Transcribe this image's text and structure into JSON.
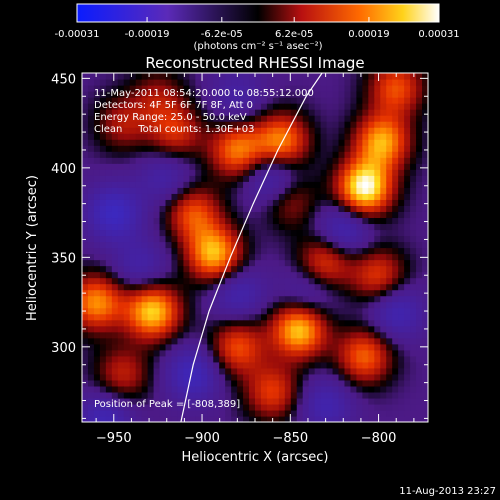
{
  "colorbar": {
    "tick_labels": [
      "-0.00031",
      "-0.00019",
      "-6.2e-05",
      "6.2e-05",
      "0.00019",
      "0.00031"
    ],
    "tick_values": [
      -0.00031,
      -0.00019,
      -6.2e-05,
      6.2e-05,
      0.00019,
      0.00031
    ],
    "range": [
      -0.00031,
      0.00031
    ],
    "units_label": "(photons cm⁻² s⁻¹ asec⁻²)"
  },
  "chart_data": {
    "type": "heatmap",
    "title": "Reconstructed RHESSI Image",
    "xlabel": "Heliocentric X (arcsec)",
    "ylabel": "Heliocentric Y (arcsec)",
    "xlim": [
      -968,
      -772
    ],
    "ylim": [
      258,
      453
    ],
    "x_ticks": [
      -950,
      -900,
      -850,
      -800
    ],
    "y_ticks": [
      300,
      350,
      400,
      450
    ],
    "colormap": "red-temperature (blue negative to white positive)",
    "peak_position": [
      -808,
      389
    ],
    "limb_arc": [
      [
        -912,
        258
      ],
      [
        -905,
        290
      ],
      [
        -896,
        320
      ],
      [
        -884,
        350
      ],
      [
        -871,
        380
      ],
      [
        -857,
        410
      ],
      [
        -841,
        440
      ],
      [
        -832,
        453
      ]
    ],
    "blobs": [
      {
        "x": -808,
        "y": 389,
        "v": 1.0
      },
      {
        "x": -798,
        "y": 415,
        "v": 0.75
      },
      {
        "x": -855,
        "y": 415,
        "v": 0.7
      },
      {
        "x": -880,
        "y": 410,
        "v": 0.65
      },
      {
        "x": -915,
        "y": 420,
        "v": 0.45
      },
      {
        "x": -945,
        "y": 425,
        "v": 0.35
      },
      {
        "x": -905,
        "y": 375,
        "v": 0.55
      },
      {
        "x": -893,
        "y": 352,
        "v": 0.8
      },
      {
        "x": -850,
        "y": 382,
        "v": 0.35
      },
      {
        "x": -830,
        "y": 348,
        "v": 0.55
      },
      {
        "x": -800,
        "y": 340,
        "v": 0.5
      },
      {
        "x": -928,
        "y": 320,
        "v": 0.85
      },
      {
        "x": -960,
        "y": 325,
        "v": 0.7
      },
      {
        "x": -945,
        "y": 285,
        "v": 0.4
      },
      {
        "x": -880,
        "y": 300,
        "v": 0.55
      },
      {
        "x": -845,
        "y": 310,
        "v": 0.85
      },
      {
        "x": -808,
        "y": 295,
        "v": 0.6
      },
      {
        "x": -860,
        "y": 275,
        "v": 0.5
      },
      {
        "x": -790,
        "y": 445,
        "v": 0.55
      },
      {
        "x": -925,
        "y": 440,
        "v": 0.3
      },
      {
        "x": -950,
        "y": 375,
        "v": -0.5
      },
      {
        "x": -920,
        "y": 395,
        "v": -0.3
      },
      {
        "x": -860,
        "y": 395,
        "v": -0.45
      },
      {
        "x": -880,
        "y": 330,
        "v": -0.35
      },
      {
        "x": -935,
        "y": 345,
        "v": -0.3
      },
      {
        "x": -820,
        "y": 365,
        "v": -0.45
      },
      {
        "x": -790,
        "y": 320,
        "v": -0.4
      },
      {
        "x": -905,
        "y": 285,
        "v": -0.45
      },
      {
        "x": -840,
        "y": 330,
        "v": -0.3
      },
      {
        "x": -955,
        "y": 260,
        "v": -0.4
      },
      {
        "x": -830,
        "y": 268,
        "v": -0.35
      },
      {
        "x": -880,
        "y": 440,
        "v": -0.25
      }
    ]
  },
  "annotations": {
    "line1": "11-May-2011 08:54:20.000 to 08:55:12.000",
    "line2": "Detectors: 4F 5F 6F 7F 8F, Att 0",
    "line3": "Energy Range: 25.0 - 50.0 keV",
    "line4": "Clean     Total counts: 1.30E+03",
    "peak": "Position of Peak = [-808,389]"
  },
  "timestamp": "11-Aug-2013 23:27"
}
